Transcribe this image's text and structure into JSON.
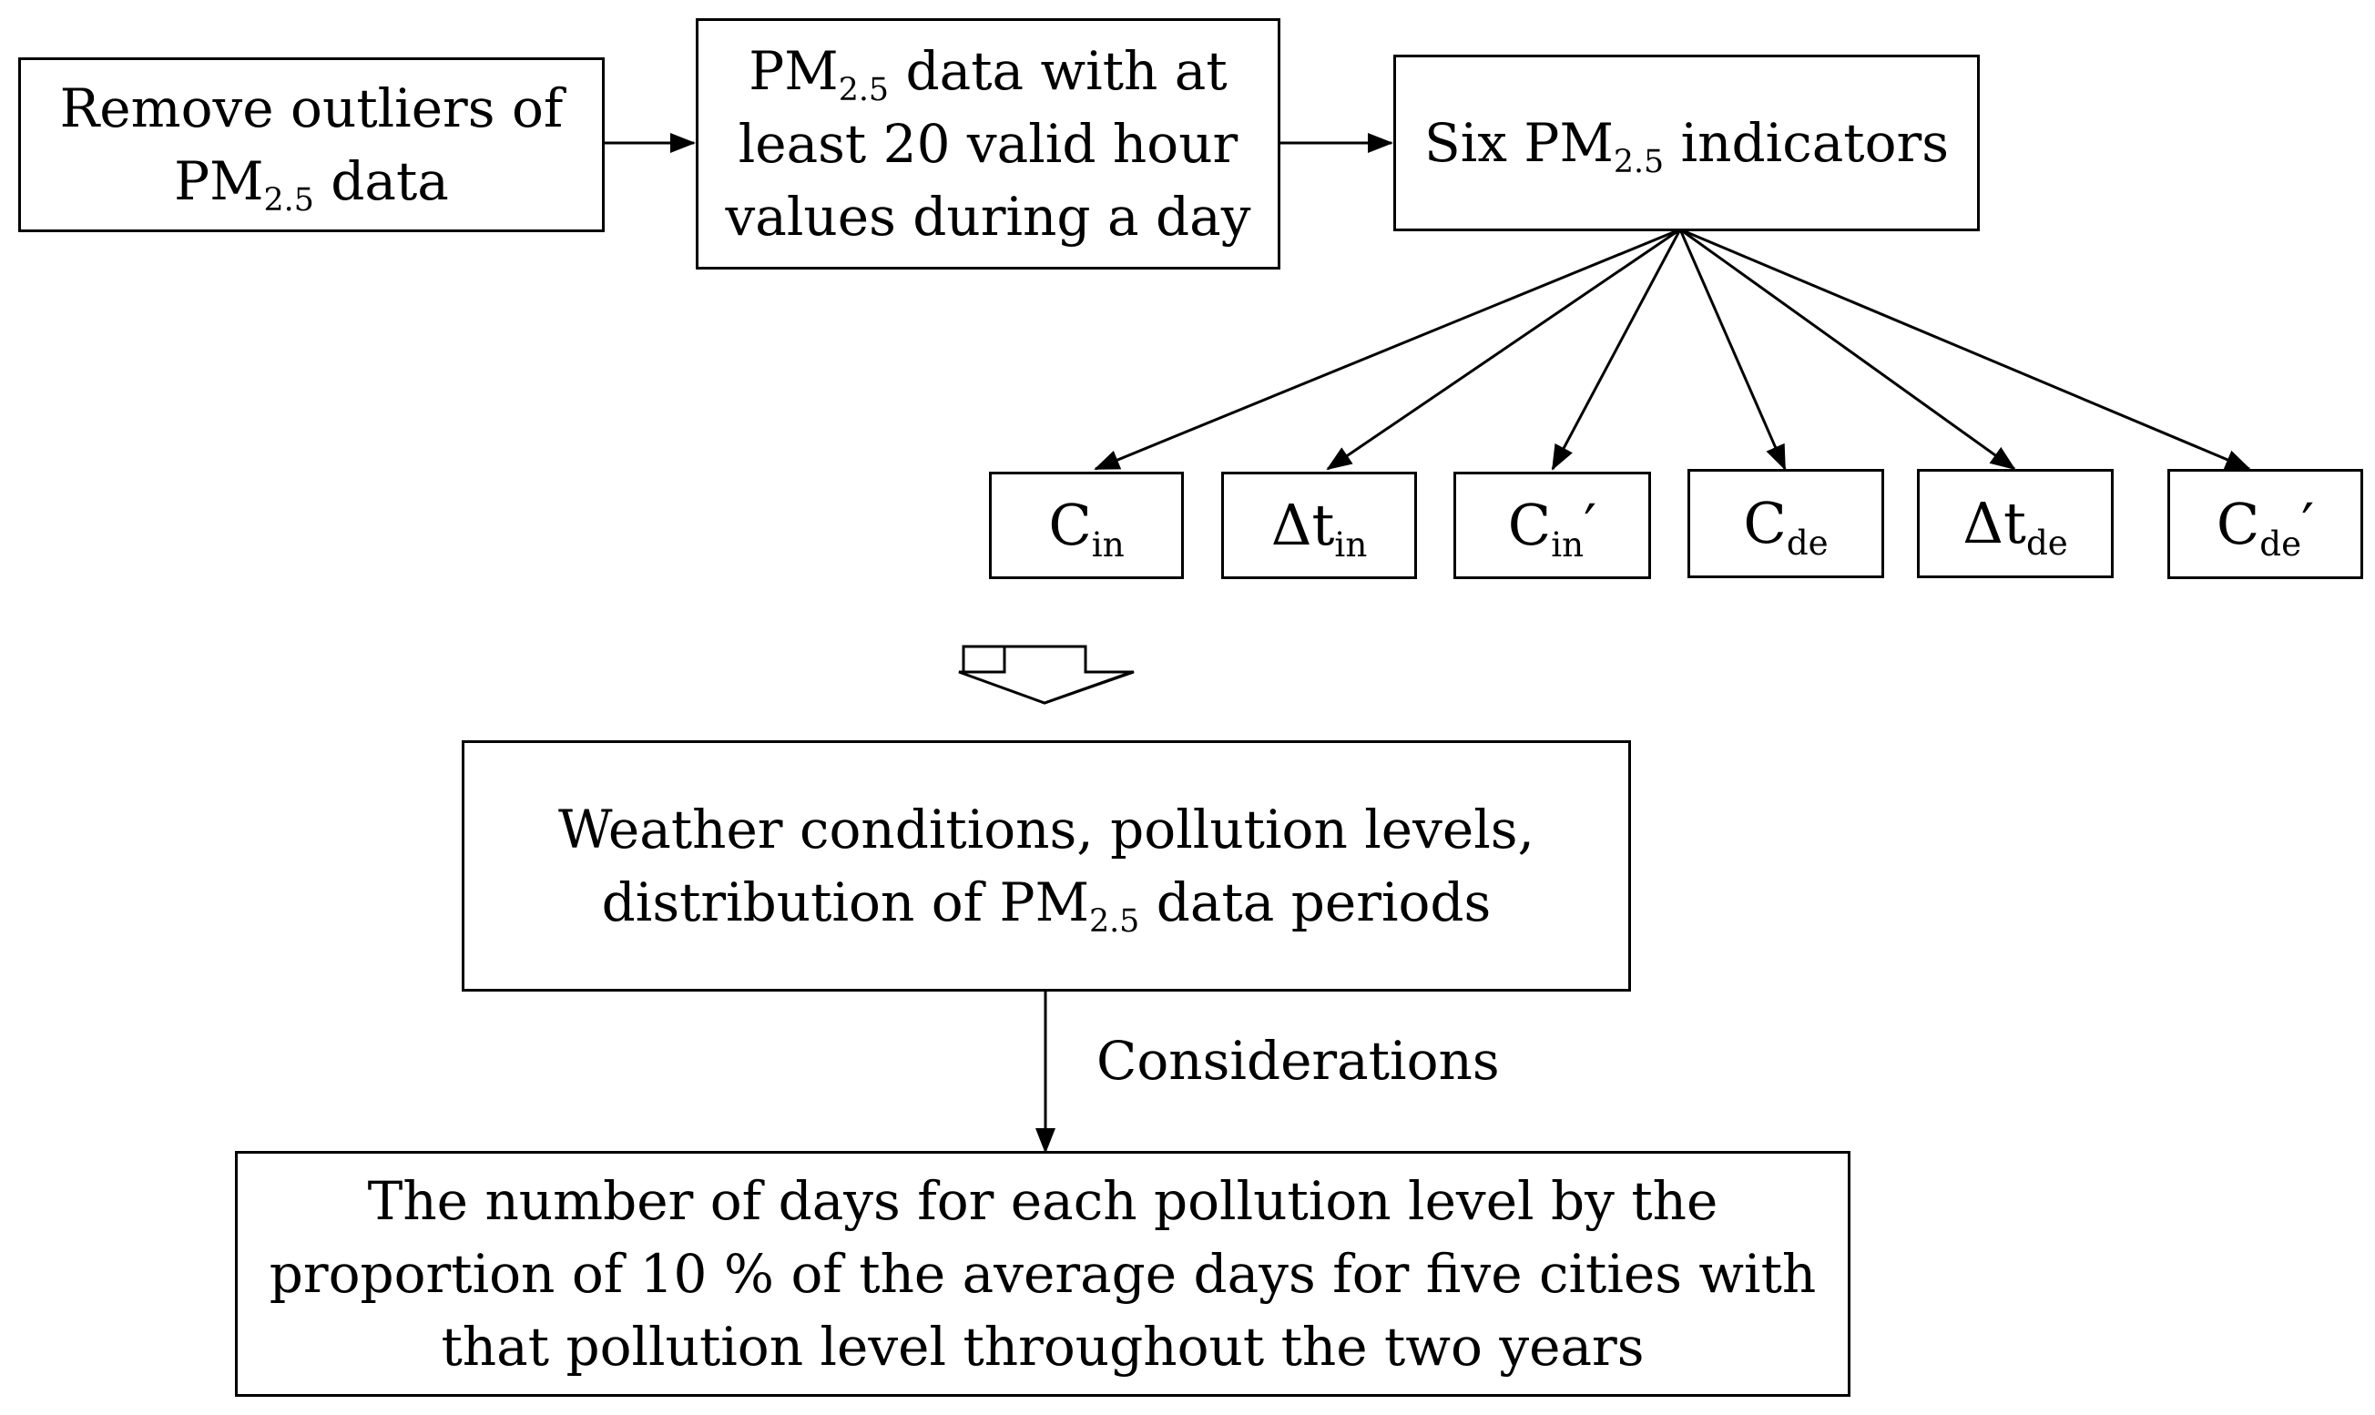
{
  "steps": {
    "remove_outliers": {
      "line1": "Remove outliers of",
      "line2_base": "PM",
      "line2_sub": "2.5",
      "line2_rest": " data"
    },
    "valid_hours": {
      "line1_base": "PM",
      "line1_sub": "2.5",
      "line1_rest": " data with at",
      "line2": "least 20 valid hour",
      "line3": "values during a day"
    },
    "six_indicators": {
      "pre": "Six PM",
      "sub": "2.5",
      "post": " indicators"
    }
  },
  "indicators": [
    {
      "base": "C",
      "sub": "in",
      "prime": ""
    },
    {
      "base": "Δt",
      "sub": "in",
      "prime": ""
    },
    {
      "base": "C",
      "sub": "in",
      "prime": "′"
    },
    {
      "base": "C",
      "sub": "de",
      "prime": ""
    },
    {
      "base": "Δt",
      "sub": "de",
      "prime": ""
    },
    {
      "base": "C",
      "sub": "de",
      "prime": "′"
    }
  ],
  "conditions_box": {
    "line1": "Weather conditions, pollution levels,",
    "line2_pre": "distribution of PM",
    "line2_sub": "2.5",
    "line2_post": " data periods"
  },
  "edge_label": "Considerations",
  "result_box": {
    "line1": "The number of days for each pollution level by the",
    "line2": "proportion of 10 % of the average days for five cities with",
    "line3": "that pollution level throughout the two years"
  }
}
